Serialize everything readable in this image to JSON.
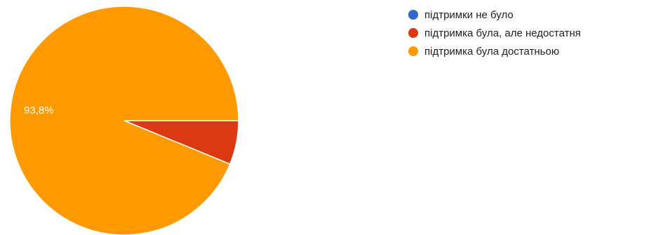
{
  "chart_data": {
    "type": "pie",
    "categories": [
      "підтримки не було",
      "підтримка була, але недостатня",
      "підтримка була достатньою"
    ],
    "values": [
      0,
      6.2,
      93.8
    ],
    "colors": [
      "#3366cc",
      "#dc3912",
      "#ff9900"
    ],
    "data_labels": [
      "",
      "",
      "93,8%"
    ],
    "legend_position": "right"
  },
  "legend": {
    "items": [
      {
        "label": "підтримки не було",
        "color": "#3366cc"
      },
      {
        "label": "підтримка була, але недостатня",
        "color": "#dc3912"
      },
      {
        "label": "підтримка була достатньою",
        "color": "#ff9900"
      }
    ]
  }
}
